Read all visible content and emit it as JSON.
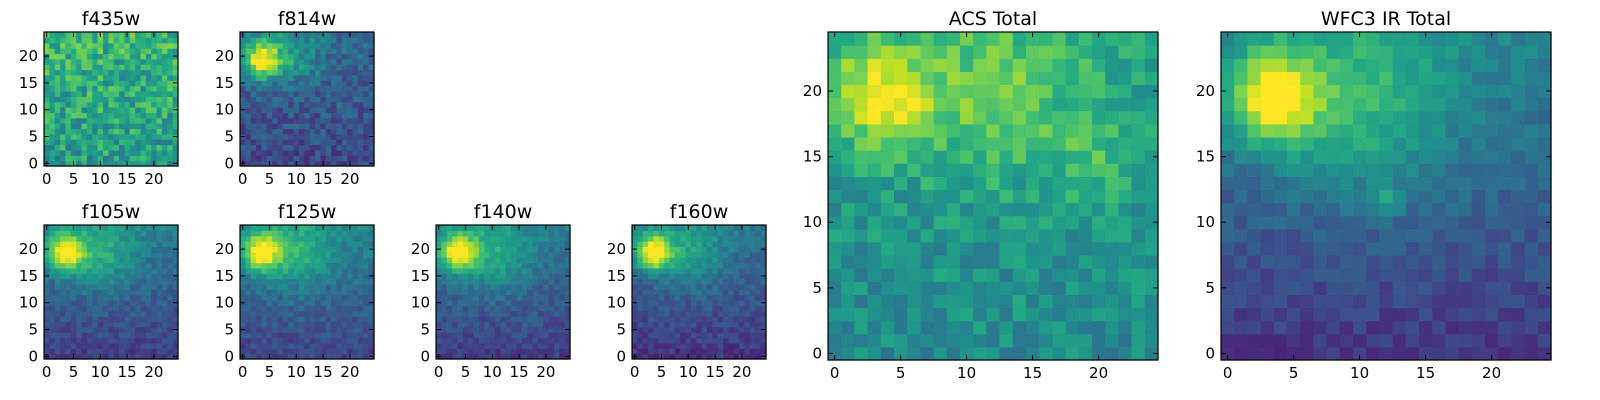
{
  "colormap": "viridis",
  "chart_data": [
    {
      "type": "heatmap",
      "id": "f435w",
      "title": "f435w",
      "xticks": [
        0,
        5,
        10,
        15,
        20
      ],
      "yticks": [
        0,
        5,
        10,
        15,
        20
      ],
      "xlim": [
        0,
        24
      ],
      "ylim": [
        0,
        24
      ],
      "grid": false,
      "legend": "none",
      "blobs": [],
      "base": 0.55,
      "ygrad": 0.1,
      "noise": 0.34,
      "seed": 11
    },
    {
      "type": "heatmap",
      "id": "f814w",
      "title": "f814w",
      "xticks": [
        0,
        5,
        10,
        15,
        20
      ],
      "yticks": [
        0,
        5,
        10,
        15,
        20
      ],
      "xlim": [
        0,
        24
      ],
      "ylim": [
        0,
        24
      ],
      "grid": false,
      "legend": "none",
      "blobs": [
        {
          "x": 3.5,
          "y": 19.5,
          "amp": 0.65,
          "sigma": 2.4
        },
        {
          "x": 9,
          "y": 20,
          "amp": 0.22,
          "sigma": 4
        }
      ],
      "base": 0.22,
      "ygrad": 0.12,
      "noise": 0.22,
      "seed": 23
    },
    {
      "type": "heatmap",
      "id": "f105w",
      "title": "f105w",
      "xticks": [
        0,
        5,
        10,
        15,
        20
      ],
      "yticks": [
        0,
        5,
        10,
        15,
        20
      ],
      "xlim": [
        0,
        24
      ],
      "ylim": [
        0,
        24
      ],
      "grid": false,
      "legend": "none",
      "blobs": [
        {
          "x": 3.5,
          "y": 19.5,
          "amp": 0.65,
          "sigma": 2.3
        },
        {
          "x": 10,
          "y": 19,
          "amp": 0.25,
          "sigma": 4.5
        }
      ],
      "base": 0.18,
      "ygrad": 0.25,
      "noise": 0.14,
      "seed": 37
    },
    {
      "type": "heatmap",
      "id": "f125w",
      "title": "f125w",
      "xticks": [
        0,
        5,
        10,
        15,
        20
      ],
      "yticks": [
        0,
        5,
        10,
        15,
        20
      ],
      "xlim": [
        0,
        24
      ],
      "ylim": [
        0,
        24
      ],
      "grid": false,
      "legend": "none",
      "blobs": [
        {
          "x": 3.5,
          "y": 19.5,
          "amp": 0.62,
          "sigma": 2.4
        },
        {
          "x": 10,
          "y": 19,
          "amp": 0.25,
          "sigma": 4.5
        }
      ],
      "base": 0.2,
      "ygrad": 0.25,
      "noise": 0.14,
      "seed": 41
    },
    {
      "type": "heatmap",
      "id": "f140w",
      "title": "f140w",
      "xticks": [
        0,
        5,
        10,
        15,
        20
      ],
      "yticks": [
        0,
        5,
        10,
        15,
        20
      ],
      "xlim": [
        0,
        24
      ],
      "ylim": [
        0,
        24
      ],
      "grid": false,
      "legend": "none",
      "blobs": [
        {
          "x": 3.5,
          "y": 19.5,
          "amp": 0.65,
          "sigma": 2.3
        },
        {
          "x": 10,
          "y": 19,
          "amp": 0.25,
          "sigma": 4.5
        }
      ],
      "base": 0.18,
      "ygrad": 0.25,
      "noise": 0.14,
      "seed": 53
    },
    {
      "type": "heatmap",
      "id": "f160w",
      "title": "f160w",
      "xticks": [
        0,
        5,
        10,
        15,
        20
      ],
      "yticks": [
        0,
        5,
        10,
        15,
        20
      ],
      "xlim": [
        0,
        24
      ],
      "ylim": [
        0,
        24
      ],
      "grid": false,
      "legend": "none",
      "blobs": [
        {
          "x": 3.5,
          "y": 19.5,
          "amp": 0.7,
          "sigma": 2.3
        },
        {
          "x": 10,
          "y": 19,
          "amp": 0.22,
          "sigma": 4.5
        }
      ],
      "base": 0.15,
      "ygrad": 0.25,
      "noise": 0.14,
      "seed": 67
    },
    {
      "type": "heatmap",
      "id": "acs-total",
      "title": "ACS Total",
      "xticks": [
        0,
        5,
        10,
        15,
        20
      ],
      "yticks": [
        0,
        5,
        10,
        15,
        20
      ],
      "xlim": [
        0,
        24
      ],
      "ylim": [
        0,
        24
      ],
      "grid": false,
      "legend": "none",
      "blobs": [
        {
          "x": 3.5,
          "y": 19.5,
          "amp": 0.4,
          "sigma": 2.8
        },
        {
          "x": 12,
          "y": 20,
          "amp": 0.2,
          "sigma": 4.5
        },
        {
          "x": 19,
          "y": 15,
          "amp": 0.12,
          "sigma": 2.5
        }
      ],
      "base": 0.48,
      "ygrad": 0.1,
      "noise": 0.22,
      "seed": 79
    },
    {
      "type": "heatmap",
      "id": "wfc3-ir-total",
      "title": "WFC3 IR Total",
      "xticks": [
        0,
        5,
        10,
        15,
        20
      ],
      "yticks": [
        0,
        5,
        10,
        15,
        20
      ],
      "xlim": [
        0,
        24
      ],
      "ylim": [
        0,
        24
      ],
      "grid": false,
      "legend": "none",
      "blobs": [
        {
          "x": 3.5,
          "y": 19.5,
          "amp": 0.6,
          "sigma": 2.4
        },
        {
          "x": 10,
          "y": 19,
          "amp": 0.28,
          "sigma": 5
        },
        {
          "x": 12,
          "y": 11.5,
          "amp": 0.2,
          "sigma": 0.8
        }
      ],
      "base": 0.16,
      "ygrad": 0.28,
      "noise": 0.12,
      "seed": 97
    }
  ]
}
